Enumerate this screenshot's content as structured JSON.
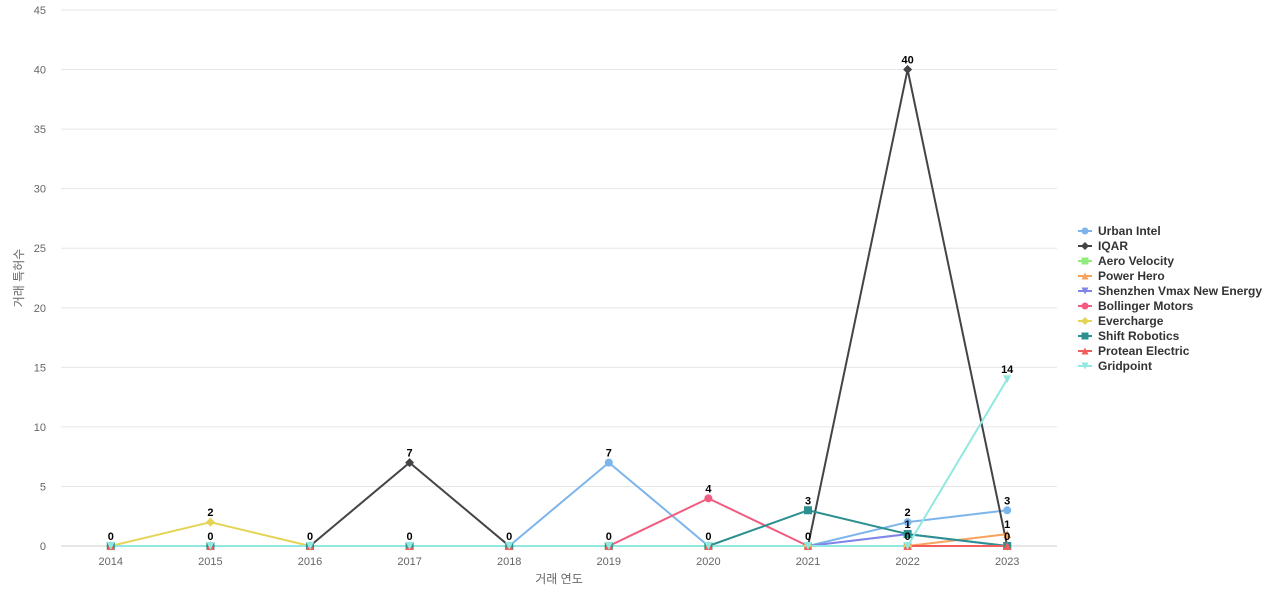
{
  "chart_data": {
    "type": "line",
    "title": "",
    "xlabel": "거래 연도",
    "ylabel": "거래 특허수",
    "x": [
      "2014",
      "2015",
      "2016",
      "2017",
      "2018",
      "2019",
      "2020",
      "2021",
      "2022",
      "2023"
    ],
    "ylim": [
      0,
      45
    ],
    "yticks": [
      0,
      5,
      10,
      15,
      20,
      25,
      30,
      35,
      40,
      45
    ],
    "grid": true,
    "legend_position": "right",
    "series": [
      {
        "name": "Urban Intel",
        "color": "#7cb5ec",
        "marker": "circle",
        "values": [
          0,
          0,
          0,
          0,
          0,
          7,
          0,
          0,
          2,
          3
        ]
      },
      {
        "name": "IQAR",
        "color": "#434348",
        "marker": "diamond",
        "values": [
          0,
          0,
          0,
          7,
          0,
          0,
          0,
          0,
          40,
          0
        ]
      },
      {
        "name": "Aero Velocity",
        "color": "#90ed7d",
        "marker": "square",
        "values": [
          0,
          0,
          0,
          0,
          0,
          0,
          0,
          0,
          0,
          0
        ]
      },
      {
        "name": "Power Hero",
        "color": "#f7a35c",
        "marker": "triangle",
        "values": [
          0,
          0,
          0,
          0,
          0,
          0,
          0,
          0,
          0,
          1
        ]
      },
      {
        "name": "Shenzhen Vmax New Energy",
        "color": "#8085e9",
        "marker": "triangle-down",
        "values": [
          0,
          0,
          0,
          0,
          0,
          0,
          0,
          0,
          1,
          0
        ]
      },
      {
        "name": "Bollinger Motors",
        "color": "#f15c80",
        "marker": "circle",
        "values": [
          0,
          0,
          0,
          0,
          0,
          0,
          4,
          0,
          0,
          0
        ]
      },
      {
        "name": "Evercharge",
        "color": "#e4d354",
        "marker": "diamond",
        "values": [
          0,
          2,
          0,
          0,
          0,
          0,
          0,
          0,
          0,
          0
        ]
      },
      {
        "name": "Shift Robotics",
        "color": "#2b908f",
        "marker": "square",
        "values": [
          0,
          0,
          0,
          0,
          0,
          0,
          0,
          3,
          1,
          0
        ]
      },
      {
        "name": "Protean Electric",
        "color": "#f45b5b",
        "marker": "triangle",
        "values": [
          0,
          0,
          0,
          0,
          0,
          0,
          0,
          0,
          0,
          0
        ]
      },
      {
        "name": "Gridpoint",
        "color": "#91e8e1",
        "marker": "triangle-down",
        "values": [
          0,
          0,
          0,
          0,
          0,
          0,
          0,
          0,
          0,
          14
        ]
      }
    ],
    "data_labels": [
      {
        "x": "2014",
        "text": "0"
      },
      {
        "x": "2015",
        "text": "2"
      },
      {
        "x": "2015",
        "text": "0"
      },
      {
        "x": "2016",
        "text": "0"
      },
      {
        "x": "2017",
        "text": "7"
      },
      {
        "x": "2017",
        "text": "0"
      },
      {
        "x": "2018",
        "text": "0"
      },
      {
        "x": "2019",
        "text": "7"
      },
      {
        "x": "2019",
        "text": "0"
      },
      {
        "x": "2020",
        "text": "4"
      },
      {
        "x": "2020",
        "text": "0"
      },
      {
        "x": "2021",
        "text": "3"
      },
      {
        "x": "2021",
        "text": "0"
      },
      {
        "x": "2022",
        "text": "40"
      },
      {
        "x": "2022",
        "text": "2"
      },
      {
        "x": "2022",
        "text": "1"
      },
      {
        "x": "2022",
        "text": "0"
      },
      {
        "x": "2023",
        "text": "14"
      },
      {
        "x": "2023",
        "text": "3"
      },
      {
        "x": "2023",
        "text": "1"
      },
      {
        "x": "2023",
        "text": "0"
      }
    ]
  }
}
